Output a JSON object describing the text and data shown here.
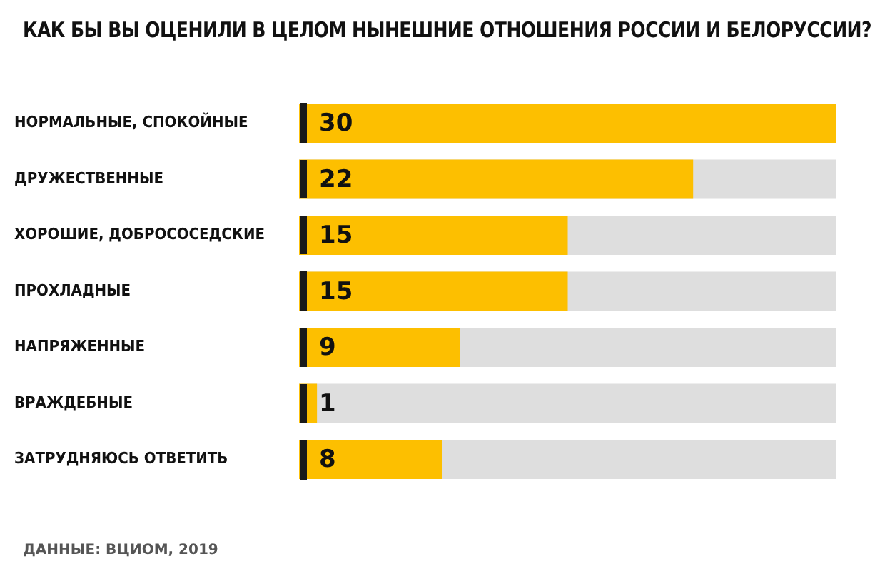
{
  "chart_data": {
    "type": "bar",
    "orientation": "horizontal",
    "title": "КАК БЫ ВЫ ОЦЕНИЛИ В ЦЕЛОМ НЫНЕШНИЕ ОТНОШЕНИЯ РОССИИ И БЕЛОРУССИИ?",
    "categories": [
      "НОРМАЛЬНЫЕ, СПОКОЙНЫЕ",
      "ДРУЖЕСТВЕННЫЕ",
      "ХОРОШИЕ, ДОБРОСОСЕДСКИЕ",
      "ПРОХЛАДНЫЕ",
      "НАПРЯЖЕННЫЕ",
      "ВРАЖДЕБНЫЕ",
      "ЗАТРУДНЯЮСЬ ОТВЕТИТЬ"
    ],
    "values": [
      30,
      22,
      15,
      15,
      9,
      1,
      8
    ],
    "color": "#fdbf00",
    "data_labels": true,
    "legend": false,
    "annotations": [
      "ДАННЫЕ: ВЦИОМ, 2019"
    ]
  }
}
